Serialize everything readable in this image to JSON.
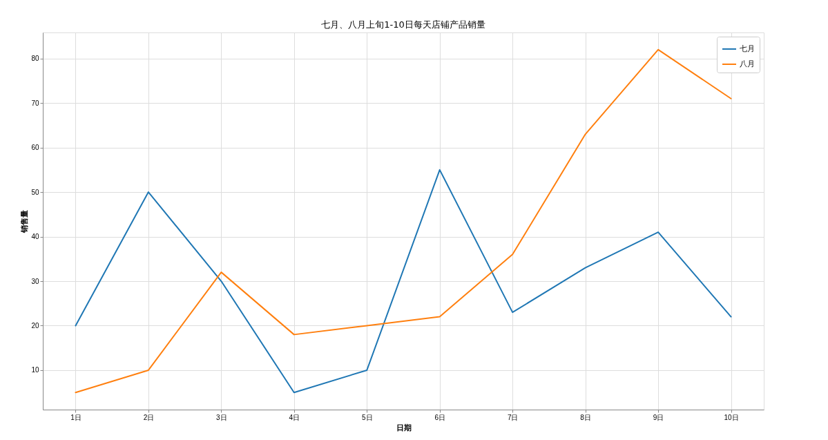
{
  "chart_data": {
    "type": "line",
    "title": "七月、八月上旬1-10日每天店铺产品销量",
    "xlabel": "日期",
    "ylabel": "销售量",
    "categories": [
      "1日",
      "2日",
      "3日",
      "4日",
      "5日",
      "6日",
      "7日",
      "8日",
      "9日",
      "10日"
    ],
    "series": [
      {
        "name": "七月",
        "color": "#1f77b4",
        "values": [
          20,
          50,
          30,
          5,
          10,
          55,
          23,
          33,
          41,
          22
        ]
      },
      {
        "name": "八月",
        "color": "#ff7f0e",
        "values": [
          5,
          10,
          32,
          18,
          20,
          22,
          36,
          63,
          82,
          71
        ]
      }
    ],
    "ylim": [
      1.15,
      85.85
    ],
    "yticks": [
      10,
      20,
      30,
      40,
      50,
      60,
      70,
      80
    ],
    "grid": true,
    "legend": "top right",
    "line_style": "solid"
  }
}
